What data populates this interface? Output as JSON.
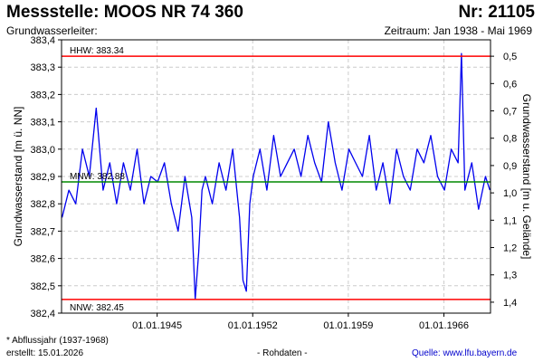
{
  "header": {
    "title": "Messstelle: MOOS NR 74 360",
    "number": "Nr: 21105",
    "subtitle": "Grundwasserleiter:",
    "period": "Zeitraum: Jan 1938 - Mai 1969"
  },
  "footer": {
    "note": "* Abflussjahr (1937-1968)",
    "created": "erstellt:  15.01.2026",
    "raw": "- Rohdaten -",
    "source": "Quelle: www.lfu.bayern.de"
  },
  "colors": {
    "series": "#0000ee",
    "limit": "#ff0000",
    "mean": "#008800",
    "grid": "#cccccc"
  },
  "chart_data": {
    "type": "line",
    "ylabel": "Grundwasserstand [m ü. NN]",
    "y2label": "Grundwasserstand [m u. Gelände]",
    "ylim": [
      382.4,
      383.4
    ],
    "y2lim": [
      1.44,
      0.44
    ],
    "yticks": [
      "382,4",
      "382,5",
      "382,6",
      "382,7",
      "382,8",
      "382,9",
      "383,0",
      "383,1",
      "383,2",
      "383,3",
      "383,4"
    ],
    "y2ticks": [
      "1,4",
      "1,3",
      "1,2",
      "1,1",
      "1,0",
      "0,9",
      "0,8",
      "0,7",
      "0,6",
      "0,5"
    ],
    "xlim": [
      "1938-01-01",
      "1969-05-31"
    ],
    "xticks": [
      "01.01.1945",
      "01.01.1952",
      "01.01.1959",
      "01.01.1966"
    ],
    "grid": true,
    "reference_lines": [
      {
        "label": "HHW: 383.34",
        "value": 383.34,
        "color": "#ff0000"
      },
      {
        "label": "MNW: 382.88",
        "value": 382.88,
        "color": "#008800"
      },
      {
        "label": "NNW: 382.45",
        "value": 382.45,
        "color": "#ff0000"
      }
    ],
    "series": [
      {
        "x": [
          "1938-01",
          "1938-07",
          "1939-01",
          "1939-07",
          "1940-01",
          "1940-07",
          "1941-01",
          "1941-07",
          "1942-01",
          "1942-07",
          "1943-01",
          "1943-07",
          "1944-01",
          "1944-07",
          "1945-01",
          "1945-07",
          "1946-01",
          "1946-07",
          "1947-01",
          "1947-07",
          "1947-10",
          "1948-01",
          "1948-04",
          "1948-07",
          "1949-01",
          "1949-07",
          "1950-01",
          "1950-07",
          "1951-01",
          "1951-04",
          "1951-07",
          "1951-10",
          "1952-01",
          "1952-07",
          "1953-01",
          "1953-07",
          "1954-01",
          "1954-07",
          "1955-01",
          "1955-07",
          "1956-01",
          "1956-07",
          "1957-01",
          "1957-07",
          "1958-01",
          "1958-07",
          "1959-01",
          "1959-07",
          "1960-01",
          "1960-07",
          "1961-01",
          "1961-07",
          "1962-01",
          "1962-07",
          "1963-01",
          "1963-07",
          "1964-01",
          "1964-07",
          "1965-01",
          "1965-07",
          "1966-01",
          "1966-07",
          "1967-01",
          "1967-04",
          "1967-07",
          "1968-01",
          "1968-07",
          "1969-01",
          "1969-05"
        ],
        "values": [
          382.75,
          382.85,
          382.8,
          383.0,
          382.9,
          383.15,
          382.85,
          382.95,
          382.8,
          382.95,
          382.85,
          383.0,
          382.8,
          382.9,
          382.88,
          382.95,
          382.8,
          382.7,
          382.9,
          382.75,
          382.45,
          382.62,
          382.85,
          382.9,
          382.8,
          382.95,
          382.85,
          383.0,
          382.75,
          382.52,
          382.48,
          382.8,
          382.9,
          383.0,
          382.85,
          383.05,
          382.9,
          382.95,
          383.0,
          382.9,
          383.05,
          382.95,
          382.88,
          383.1,
          382.95,
          382.85,
          383.0,
          382.95,
          382.9,
          383.05,
          382.85,
          382.95,
          382.8,
          383.0,
          382.9,
          382.85,
          383.0,
          382.95,
          383.05,
          382.9,
          382.85,
          383.0,
          382.95,
          383.35,
          382.85,
          382.95,
          382.78,
          382.9,
          382.85
        ]
      }
    ]
  }
}
